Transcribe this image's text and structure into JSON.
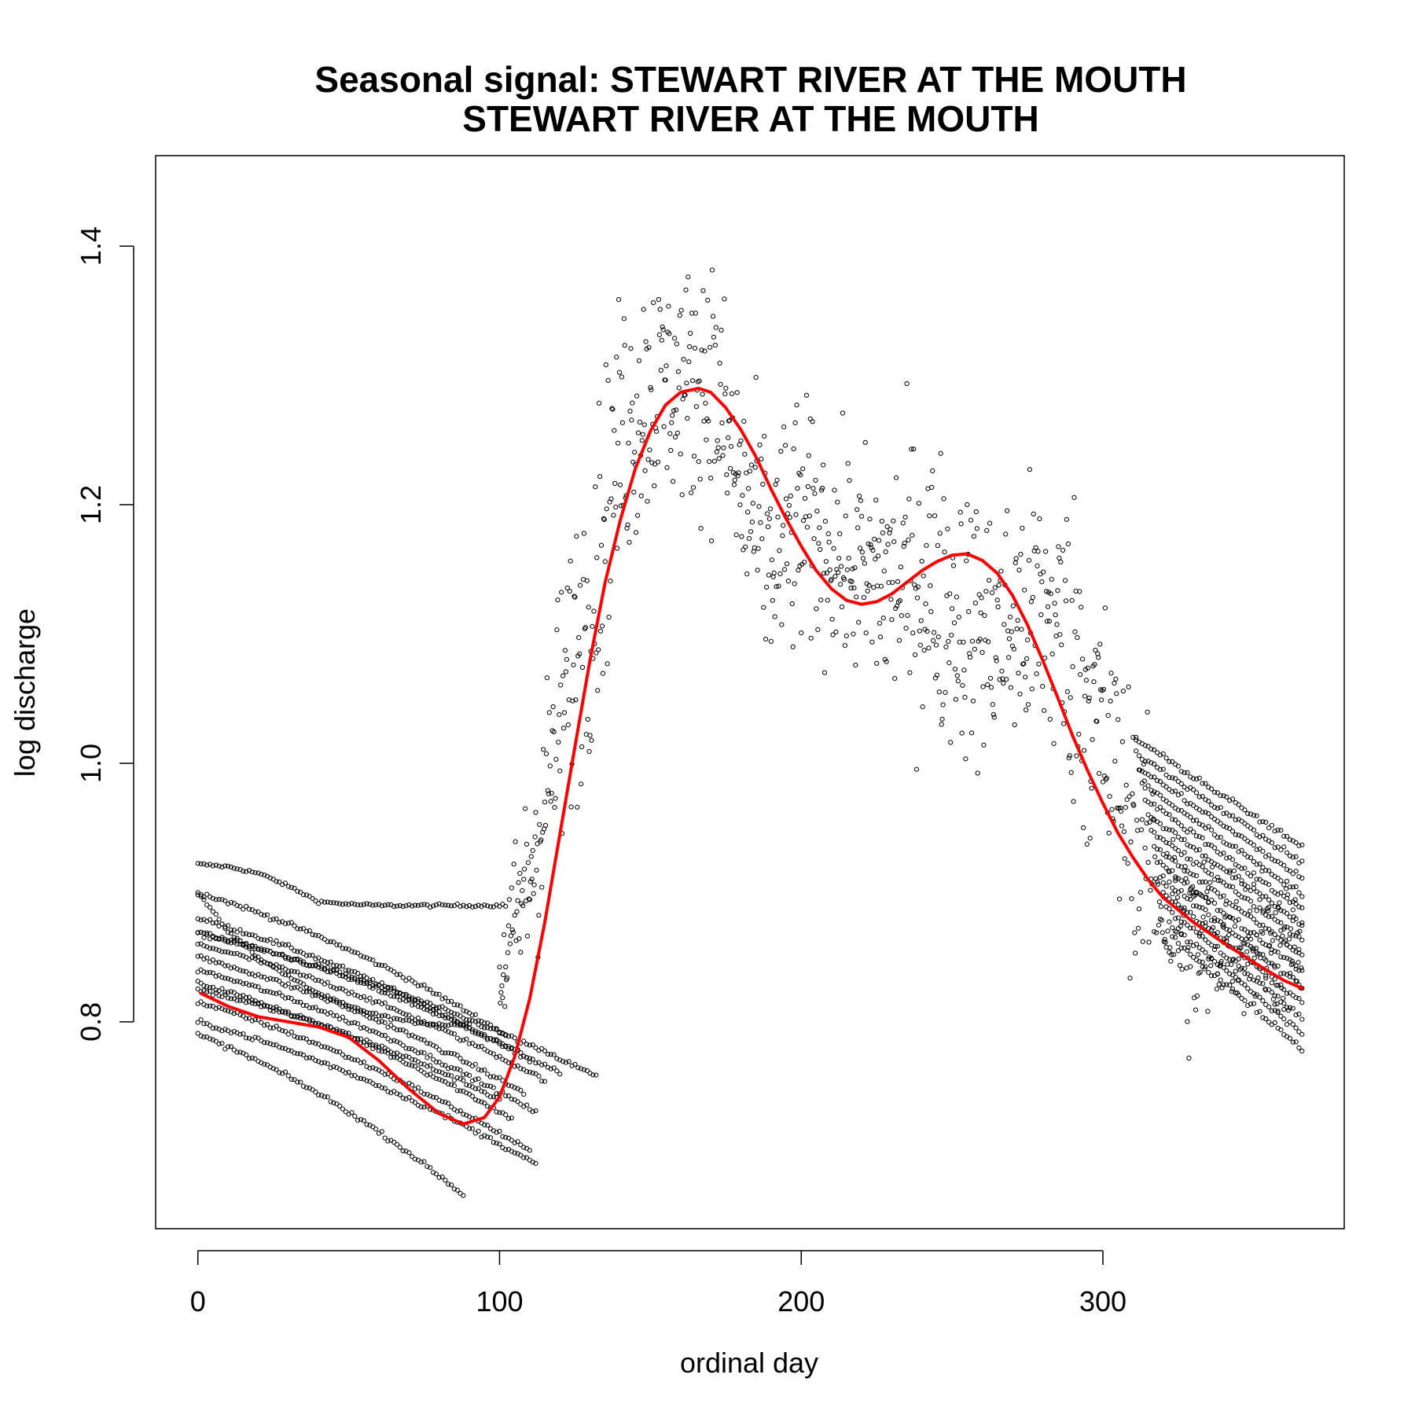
{
  "chart_data": {
    "type": "scatter",
    "title": "Seasonal signal: STEWART RIVER AT THE MOUTH",
    "subtitle": "STEWART RIVER AT THE MOUTH",
    "xlabel": "ordinal day",
    "ylabel": "log discharge",
    "xlim": [
      -14,
      380
    ],
    "ylim": [
      0.64,
      1.47
    ],
    "xticks": [
      0,
      100,
      200,
      300
    ],
    "xtick_labels": [
      "0",
      "100",
      "200",
      "300"
    ],
    "yticks": [
      0.8,
      1.0,
      1.2,
      1.4
    ],
    "ytick_labels": [
      "0.8",
      "1.0",
      "1.2",
      "1.4"
    ],
    "grid": false,
    "legend": "none",
    "colors": {
      "points": "#000000",
      "fit": "#ff0000"
    },
    "fit_series": {
      "x": [
        1,
        10,
        20,
        30,
        40,
        50,
        60,
        70,
        80,
        88,
        95,
        100,
        105,
        110,
        115,
        120,
        125,
        130,
        135,
        140,
        145,
        150,
        155,
        160,
        166,
        170,
        175,
        180,
        185,
        190,
        195,
        200,
        205,
        210,
        215,
        220,
        225,
        230,
        235,
        240,
        245,
        250,
        255,
        260,
        265,
        270,
        275,
        280,
        285,
        290,
        295,
        300,
        305,
        310,
        315,
        320,
        330,
        340,
        350,
        360,
        366
      ],
      "y": [
        0.822,
        0.812,
        0.804,
        0.8,
        0.796,
        0.788,
        0.77,
        0.748,
        0.729,
        0.721,
        0.726,
        0.742,
        0.773,
        0.818,
        0.877,
        0.945,
        1.013,
        1.08,
        1.14,
        1.188,
        1.228,
        1.257,
        1.277,
        1.287,
        1.29,
        1.287,
        1.275,
        1.258,
        1.237,
        1.212,
        1.189,
        1.168,
        1.149,
        1.135,
        1.126,
        1.123,
        1.125,
        1.131,
        1.14,
        1.149,
        1.156,
        1.161,
        1.162,
        1.157,
        1.147,
        1.13,
        1.107,
        1.08,
        1.051,
        1.021,
        0.994,
        0.969,
        0.946,
        0.927,
        0.91,
        0.896,
        0.877,
        0.861,
        0.846,
        0.832,
        0.826
      ]
    },
    "scatter_bands": [
      {
        "name": "",
        "y": [
          0.922,
          0.92,
          0.915,
          0.905,
          0.893,
          0.891,
          0.89,
          0.89,
          0.89,
          0.89,
          0.89,
          0.89
        ],
        "x": [
          0,
          10,
          20,
          30,
          40,
          50,
          60,
          70,
          80,
          90,
          100,
          102
        ]
      },
      {
        "name": "",
        "y": [
          0.9,
          0.87,
          0.85,
          0.835,
          0.822,
          0.812,
          0.805,
          0.8,
          0.798,
          0.798
        ],
        "x": [
          0,
          10,
          20,
          30,
          40,
          50,
          60,
          70,
          80,
          90
        ]
      }
    ],
    "scatter_data": {
      "winter_recession_curves": [
        {
          "x": [
            0,
            102
          ],
          "y_start": 0.9,
          "y_end": 0.79
        },
        {
          "x": [
            0,
            110
          ],
          "y_start": 0.88,
          "y_end": 0.77
        },
        {
          "x": [
            0,
            120
          ],
          "y_start": 0.87,
          "y_end": 0.76
        },
        {
          "x": [
            0,
            132
          ],
          "y_start": 0.868,
          "y_end": 0.758
        },
        {
          "x": [
            0,
            115
          ],
          "y_start": 0.86,
          "y_end": 0.755
        },
        {
          "x": [
            0,
            108
          ],
          "y_start": 0.85,
          "y_end": 0.745
        },
        {
          "x": [
            0,
            112
          ],
          "y_start": 0.84,
          "y_end": 0.73
        },
        {
          "x": [
            0,
            104
          ],
          "y_start": 0.83,
          "y_end": 0.725
        },
        {
          "x": [
            0,
            100
          ],
          "y_start": 0.825,
          "y_end": 0.74
        },
        {
          "x": [
            0,
            110
          ],
          "y_start": 0.815,
          "y_end": 0.7
        },
        {
          "x": [
            0,
            112
          ],
          "y_start": 0.8,
          "y_end": 0.69
        },
        {
          "x": [
            0,
            88
          ],
          "y_start": 0.79,
          "y_end": 0.666
        }
      ],
      "summer_envelope": {
        "x": [
          100,
          110,
          120,
          130,
          140,
          150,
          160,
          170,
          180,
          190,
          200,
          210,
          220,
          230,
          240,
          250,
          260,
          270,
          280,
          290,
          300,
          310,
          320,
          330,
          340,
          350,
          366
        ],
        "y_low": [
          0.76,
          0.79,
          0.86,
          0.95,
          1.08,
          1.14,
          1.16,
          1.14,
          1.06,
          1.01,
          1.03,
          1.05,
          1.0,
          0.98,
          0.97,
          0.95,
          0.94,
          0.95,
          0.94,
          0.9,
          0.83,
          0.8,
          0.78,
          0.72,
          0.78,
          0.78,
          0.77
        ],
        "y_high": [
          0.9,
          1.04,
          1.2,
          1.31,
          1.42,
          1.44,
          1.42,
          1.46,
          1.36,
          1.3,
          1.34,
          1.28,
          1.29,
          1.3,
          1.32,
          1.29,
          1.26,
          1.26,
          1.29,
          1.28,
          1.2,
          1.1,
          1.01,
          0.99,
          0.96,
          0.95,
          0.93
        ]
      },
      "point_count_estimate": 5200
    }
  }
}
